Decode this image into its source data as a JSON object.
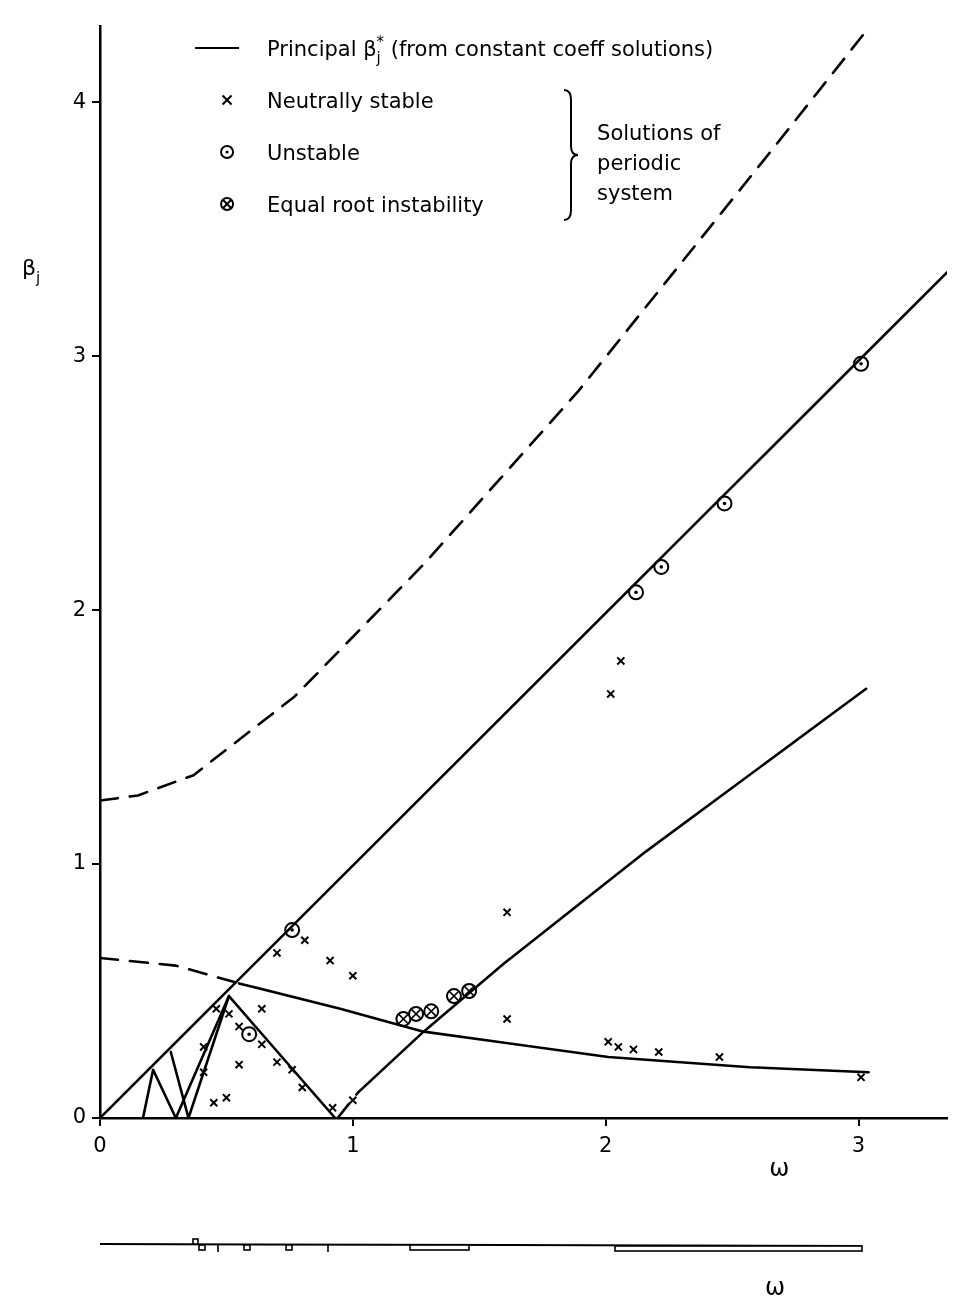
{
  "chart_data": [
    {
      "type": "line",
      "xlabel": "ω",
      "ylabel": "β$_{j}$",
      "xlim": [
        0,
        3.35
      ],
      "ylim": [
        0,
        4.3
      ],
      "xticks": [
        0,
        1,
        2,
        3
      ],
      "yticks": [
        0,
        1,
        2,
        3,
        4
      ],
      "grid": false,
      "legend": "top",
      "annotations": [
        "Solutions of periodic system"
      ],
      "series": [
        {
          "color": "#000000",
          "line_style": "solid",
          "x": [
            0,
            3.35
          ],
          "values": [
            0,
            3.33
          ]
        },
        {
          "color": "#000000",
          "line_style": "dashed",
          "x": [
            0,
            0.15,
            0.37,
            0.77,
            1.28,
            1.89,
            2.64,
            3.03
          ],
          "values": [
            1.25,
            1.27,
            1.35,
            1.66,
            2.18,
            2.86,
            3.79,
            4.28
          ]
        },
        {
          "color": "#000000",
          "line_style": "dashed",
          "x": [
            0,
            0.3,
            0.55
          ],
          "values": [
            0.63,
            0.6,
            0.53
          ]
        },
        {
          "name": "Principal β$_{j}$$^{*}$ (from constant coeff solutions)",
          "color": "#000000",
          "line_style": "solid",
          "x": [
            0.55,
            0.95,
            1.28,
            2.01,
            2.57,
            3.04
          ],
          "values": [
            0.53,
            0.43,
            0.34,
            0.24,
            0.2,
            0.18
          ]
        },
        {
          "color": "#000000",
          "line_style": "solid",
          "x": [
            0.17,
            0.21,
            0.3,
            0.51,
            0.93
          ],
          "values": [
            0,
            0.19,
            0,
            0.48,
            0
          ]
        },
        {
          "color": "#000000",
          "line_style": "solid",
          "x": [
            0.28,
            0.35,
            0.51
          ],
          "values": [
            0.26,
            0,
            0.48
          ]
        },
        {
          "color": "#000000",
          "line_style": "dashed",
          "x": [
            0.94,
            1.02
          ],
          "values": [
            0,
            0.1
          ]
        },
        {
          "color": "#000000",
          "line_style": "solid",
          "x": [
            1.02,
            1.28,
            1.6,
            2.16,
            3.03
          ],
          "values": [
            0.1,
            0.34,
            0.61,
            1.05,
            1.69
          ]
        },
        {
          "name": "Neutrally stable",
          "type": "scatter",
          "marker": "cross",
          "color": "#000000",
          "x": [
            0.81,
            0.7,
            0.91,
            1.0,
            0.46,
            0.64,
            0.51,
            0.55,
            0.64,
            0.41,
            0.7,
            0.55,
            0.41,
            0.76,
            0.8,
            0.5,
            0.45,
            0.92,
            1.0,
            1.61,
            1.61,
            2.01,
            2.05,
            2.11,
            2.21,
            2.45,
            3.01,
            2.02,
            2.06
          ],
          "values": [
            0.7,
            0.65,
            0.62,
            0.56,
            0.43,
            0.43,
            0.41,
            0.36,
            0.29,
            0.28,
            0.22,
            0.21,
            0.18,
            0.19,
            0.12,
            0.08,
            0.06,
            0.04,
            0.07,
            0.81,
            0.39,
            0.3,
            0.28,
            0.27,
            0.26,
            0.24,
            0.16,
            1.67,
            1.8
          ]
        },
        {
          "name": "Unstable",
          "type": "scatter",
          "marker": "circle",
          "color": "#000000",
          "x": [
            3.01,
            2.47,
            2.22,
            2.12,
            0.76,
            0.59
          ],
          "values": [
            2.97,
            2.42,
            2.17,
            2.07,
            0.74,
            0.33
          ]
        },
        {
          "name": "Equal root instability",
          "type": "scatter",
          "marker": "circle",
          "color": "#000000",
          "x": [
            1.2,
            1.25,
            1.31,
            1.4,
            1.46
          ],
          "values": [
            0.39,
            0.41,
            0.42,
            0.48,
            0.5
          ]
        }
      ]
    },
    {
      "type": "other",
      "xlabel": "ω"
    }
  ]
}
